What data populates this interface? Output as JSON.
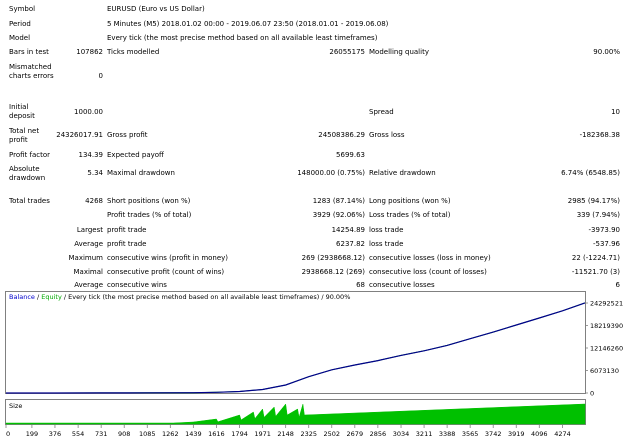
{
  "report": {
    "symbol_label": "Symbol",
    "symbol_value": "EURUSD (Euro vs US Dollar)",
    "period_label": "Period",
    "period_value": "5 Minutes (M5) 2018.01.02 00:00 - 2019.06.07 23:50 (2018.01.01 - 2019.06.08)",
    "model_label": "Model",
    "model_value": "Every tick (the most precise method based on all available least timeframes)",
    "bars_label": "Bars in test",
    "bars_value": "107862",
    "ticks_label": "Ticks modelled",
    "ticks_value": "26055175",
    "quality_label": "Modelling quality",
    "quality_value": "90.00%",
    "mismatched_label": "Mismatched charts errors",
    "mismatched_value": "0",
    "deposit_label": "Initial deposit",
    "deposit_value": "1000.00",
    "spread_label": "Spread",
    "spread_value": "10",
    "netprofit_label": "Total net profit",
    "netprofit_value": "24326017.91",
    "grossprofit_label": "Gross profit",
    "grossprofit_value": "24508386.29",
    "grossloss_label": "Gross loss",
    "grossloss_value": "-182368.38",
    "pf_label": "Profit factor",
    "pf_value": "134.39",
    "payoff_label": "Expected payoff",
    "payoff_value": "5699.63",
    "absdd_label": "Absolute drawdown",
    "absdd_value": "5.34",
    "maxdd_label": "Maximal drawdown",
    "maxdd_value": "148000.00 (0.75%)",
    "reldd_label": "Relative drawdown",
    "reldd_value": "6.74% (6548.85)",
    "trades_label": "Total trades",
    "trades_value": "4268",
    "short_label": "Short positions (won %)",
    "short_value": "1283 (87.14%)",
    "long_label": "Long positions (won %)",
    "long_value": "2985 (94.17%)",
    "ptrades_label": "Profit trades (% of total)",
    "ptrades_value": "3929 (92.06%)",
    "ltrades_label": "Loss trades (% of total)",
    "ltrades_value": "339 (7.94%)",
    "largest_label": "Largest",
    "lprofit_label": "profit trade",
    "lprofit_value": "14254.89",
    "lloss_label": "loss trade",
    "lloss_value": "-3973.90",
    "average_label": "Average",
    "aprofit_label": "profit trade",
    "aprofit_value": "6237.82",
    "aloss_label": "loss trade",
    "aloss_value": "-537.96",
    "maximum_label": "Maximum",
    "mcwins_label": "consecutive wins (profit in money)",
    "mcwins_value": "269 (2938668.12)",
    "mclosses_label": "consecutive losses (loss in money)",
    "mclosses_value": "22 (-1224.71)",
    "maximal_label": "Maximal",
    "mcprofit_label": "consecutive profit (count of wins)",
    "mcprofit_value": "2938668.12 (269)",
    "mcloss_label": "consecutive loss (count of losses)",
    "mcloss_value": "-11521.70 (3)",
    "average2_label": "Average",
    "acwins_label": "consecutive wins",
    "acwins_value": "68",
    "aclosses_label": "consecutive losses",
    "aclosses_value": "6"
  },
  "chart": {
    "legend_balance": "Balance",
    "legend_sep": " / ",
    "legend_equity": "Equity",
    "legend_rest": " / Every tick (the most precise method based on all available least timeframes) / 90.00%",
    "size_label": "Size",
    "colors": {
      "balance": "#00008b",
      "equity": "#00aa00",
      "size": "#00c000",
      "legend_balance": "#0000cc",
      "legend_equity": "#00aa00"
    }
  },
  "chart_data": {
    "type": "line",
    "series": [
      {
        "name": "Balance",
        "x": [
          0,
          376,
          731,
          1085,
          1439,
          1616,
          1794,
          1971,
          2148,
          2325,
          2502,
          2679,
          2856,
          3034,
          3211,
          3388,
          3565,
          3742,
          3919,
          4096,
          4274,
          4447
        ],
        "values": [
          1000,
          8000,
          22000,
          45000,
          85000,
          180000,
          400000,
          950000,
          2150000,
          4400000,
          6250000,
          7550000,
          8750000,
          10150000,
          11400000,
          12850000,
          14650000,
          16450000,
          18350000,
          20250000,
          22200000,
          24327018
        ]
      },
      {
        "name": "Equity",
        "x": [
          0,
          376,
          731,
          1085,
          1439,
          1616,
          1794,
          1971,
          2148,
          2325,
          2502,
          2679,
          2856,
          3034,
          3211,
          3388,
          3565,
          3742,
          3919,
          4096,
          4274,
          4447
        ],
        "values": [
          1000,
          8000,
          22000,
          45000,
          85000,
          180000,
          400000,
          950000,
          2150000,
          4400000,
          6250000,
          7550000,
          8750000,
          10150000,
          11400000,
          12850000,
          14650000,
          16450000,
          18350000,
          20250000,
          22200000,
          24327018
        ]
      }
    ],
    "y_ticks": [
      0,
      6073130,
      12146260,
      18219390,
      24292521
    ],
    "y_tick_labels": [
      "0",
      "6073130",
      "12146260",
      "18219390",
      "24292521"
    ],
    "x_ticks": [
      0,
      199,
      376,
      554,
      731,
      908,
      1085,
      1262,
      1439,
      1616,
      1794,
      1971,
      2148,
      2325,
      2502,
      2679,
      2856,
      3034,
      3211,
      3388,
      3565,
      3742,
      3919,
      4096,
      4274
    ],
    "x_tick_labels": [
      "0",
      "199",
      "376",
      "554",
      "731",
      "908",
      "1085",
      "1262",
      "1439",
      "1616",
      "1794",
      "1971",
      "2148",
      "2325",
      "2502",
      "2679",
      "2856",
      "3034",
      "3211",
      "3388",
      "3565",
      "3742",
      "3919",
      "4096",
      "4274"
    ],
    "xlim": [
      0,
      4447
    ],
    "ylim": [
      0,
      24292521
    ],
    "size_panel": {
      "x": [
        0,
        1285,
        1439,
        1616,
        1794,
        1900,
        1971,
        2060,
        2148,
        2240,
        2280,
        4447
      ],
      "values": [
        0.05,
        0.05,
        0.1,
        0.25,
        0.45,
        0.6,
        0.75,
        0.85,
        1.0,
        0.75,
        1.0,
        1.0
      ]
    }
  }
}
